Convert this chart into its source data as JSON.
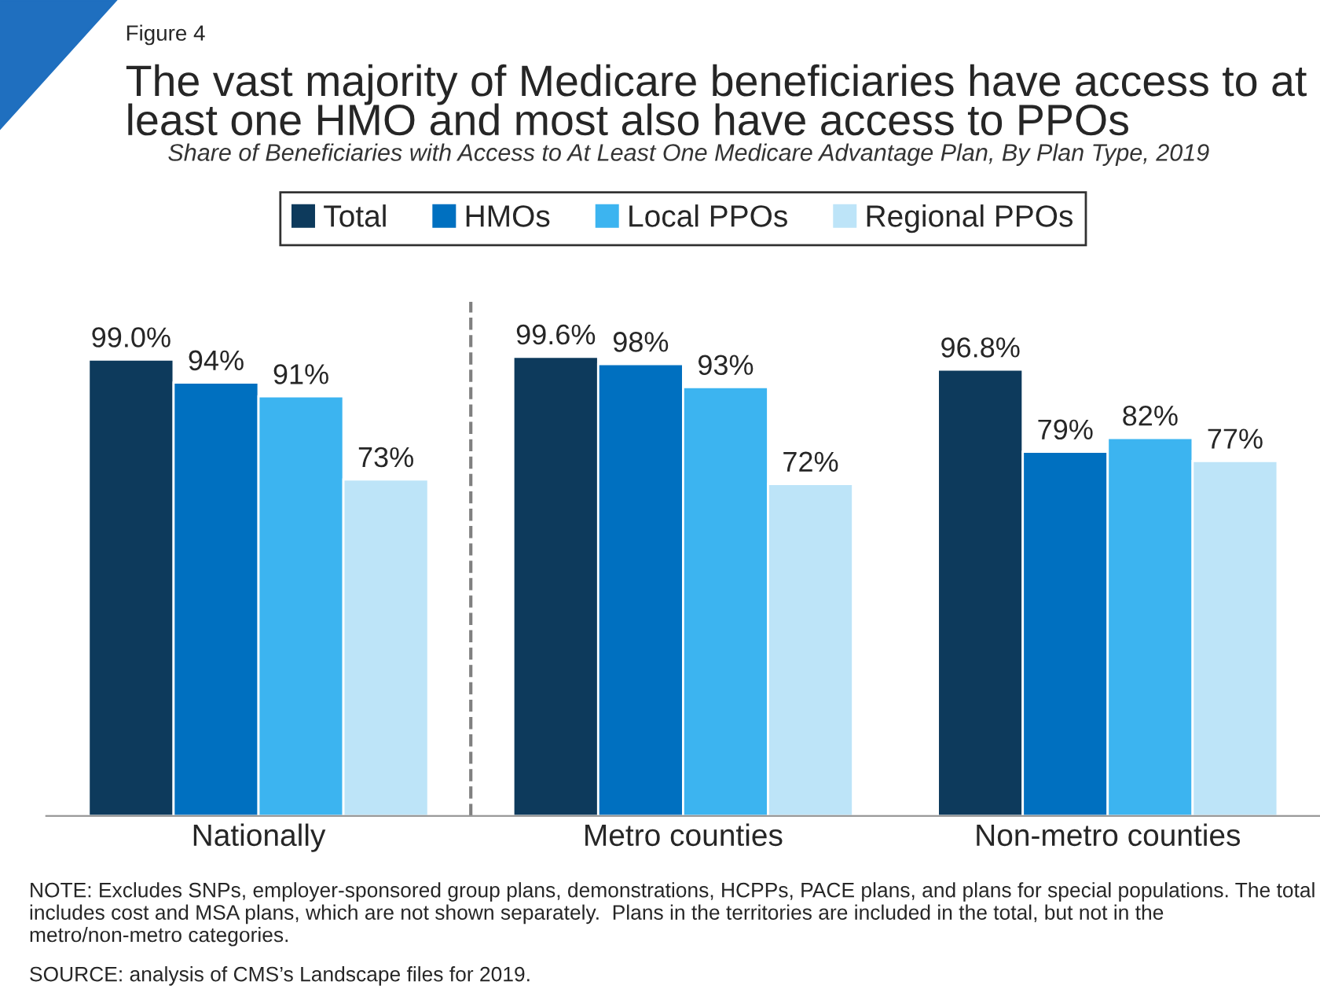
{
  "chart_data": {
    "type": "bar",
    "title": "The vast majority of Medicare beneficiaries have access to at least one HMO and most also have access to PPOs",
    "subtitle": "Share of Beneficiaries with Access to At Least One Medicare Advantage Plan, By Plan Type, 2019",
    "categories": [
      "Nationally",
      "Metro counties",
      "Non-metro counties"
    ],
    "series": [
      {
        "name": "Total",
        "color": "#0d3a5c",
        "values": [
          99.0,
          99.6,
          96.8
        ],
        "value_labels": [
          "99.0%",
          "99.6%",
          "96.8%"
        ]
      },
      {
        "name": "HMOs",
        "color": "#0070c0",
        "values": [
          94,
          98,
          79
        ],
        "value_labels": [
          "94%",
          "98%",
          "79%"
        ]
      },
      {
        "name": "Local PPOs",
        "color": "#3cb4f0",
        "values": [
          91,
          93,
          82
        ],
        "value_labels": [
          "91%",
          "93%",
          "82%"
        ]
      },
      {
        "name": "Regional PPOs",
        "color": "#bde4f8",
        "values": [
          73,
          72,
          77
        ],
        "value_labels": [
          "73%",
          "72%",
          "77%"
        ]
      }
    ],
    "legend": "top",
    "grid": false,
    "annotations": [
      "Figure 4",
      "NOTE: Excludes SNPs, employer-sponsored group plans, demonstrations, HCPPs, PACE plans, and plans for special populations. The total includes cost and MSA plans, which are not shown separately.  Plans in the territories are included in the total, but not in the metro/non-metro categories.",
      "SOURCE: analysis of CMS’s Landscape files for 2019."
    ]
  }
}
